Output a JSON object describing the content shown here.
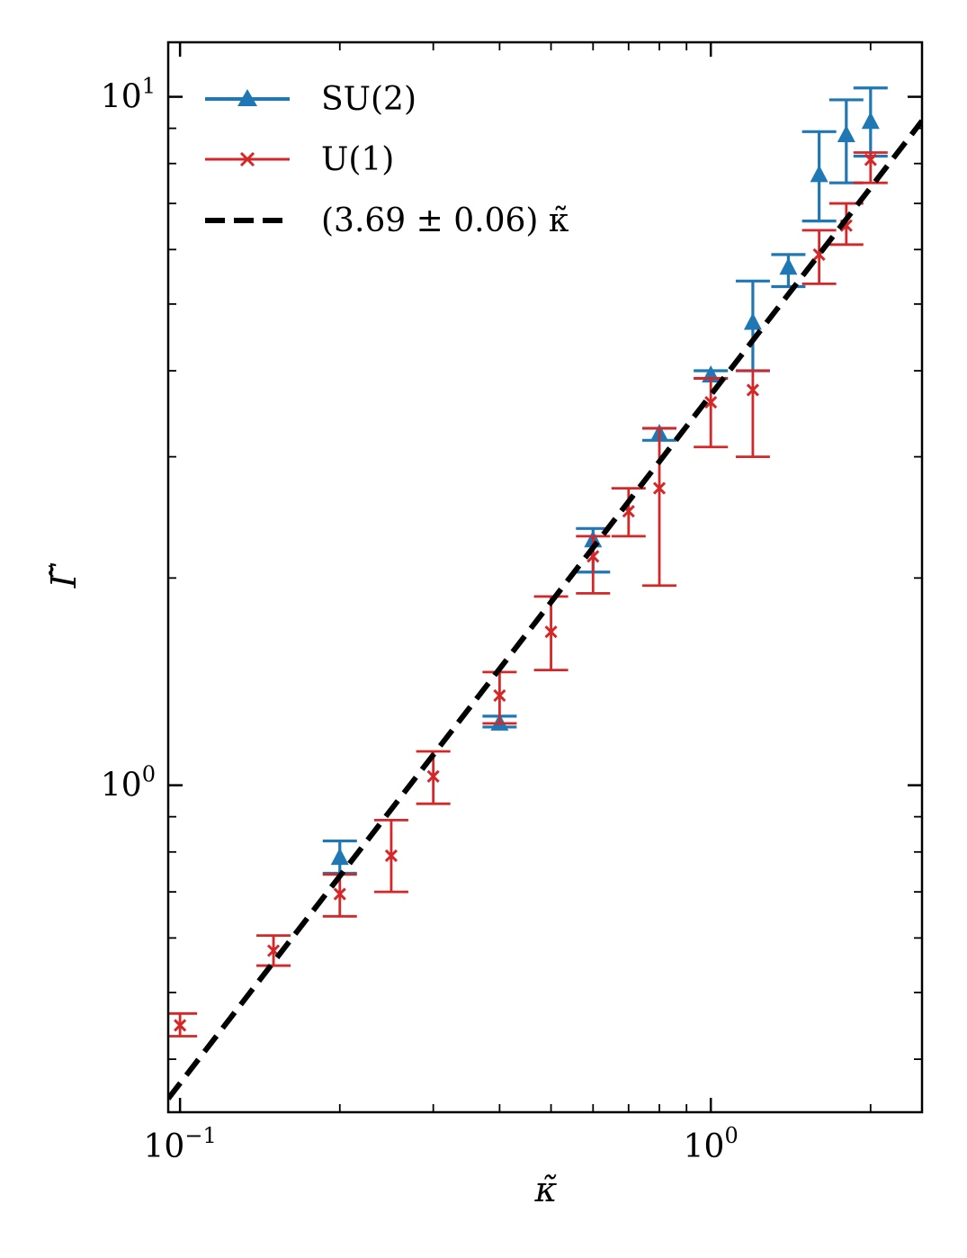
{
  "chart_data": {
    "type": "scatter",
    "xscale": "log",
    "yscale": "log",
    "xlim": [
      0.095,
      2.5
    ],
    "ylim": [
      0.335,
      12.0
    ],
    "xlabel": "κ̃",
    "ylabel": "Γ̃",
    "x_ticks": [
      {
        "value": 0.1,
        "base": "10",
        "exp": "−1"
      },
      {
        "value": 1,
        "base": "10",
        "exp": "0"
      }
    ],
    "y_ticks": [
      {
        "value": 1,
        "base": "10",
        "exp": "0"
      },
      {
        "value": 10,
        "base": "10",
        "exp": "1"
      }
    ],
    "legend_position": "top-left",
    "series": [
      {
        "name": "SU(2)",
        "color": "#1f77b4",
        "marker": "triangle",
        "points": [
          {
            "x": 0.2,
            "y": 0.785,
            "ylo": 0.745,
            "yhi": 0.83
          },
          {
            "x": 0.4,
            "y": 1.23,
            "ylo": 1.215,
            "yhi": 1.26
          },
          {
            "x": 0.6,
            "y": 2.27,
            "ylo": 2.04,
            "yhi": 2.36
          },
          {
            "x": 0.8,
            "y": 3.24,
            "ylo": 3.17,
            "yhi": 3.3
          },
          {
            "x": 1.0,
            "y": 3.94,
            "ylo": 3.9,
            "yhi": 4.0
          },
          {
            "x": 1.2,
            "y": 4.7,
            "ylo": 4.0,
            "yhi": 5.4
          },
          {
            "x": 1.4,
            "y": 5.65,
            "ylo": 5.3,
            "yhi": 5.9
          },
          {
            "x": 1.6,
            "y": 7.7,
            "ylo": 6.6,
            "yhi": 8.9
          },
          {
            "x": 1.8,
            "y": 8.8,
            "ylo": 7.5,
            "yhi": 9.9
          },
          {
            "x": 2.0,
            "y": 9.2,
            "ylo": 8.2,
            "yhi": 10.3
          }
        ]
      },
      {
        "name": "U(1)",
        "color": "#d62728",
        "marker": "x",
        "points": [
          {
            "x": 0.1,
            "y": 0.448,
            "ylo": 0.432,
            "yhi": 0.466
          },
          {
            "x": 0.15,
            "y": 0.575,
            "ylo": 0.547,
            "yhi": 0.605
          },
          {
            "x": 0.2,
            "y": 0.695,
            "ylo": 0.645,
            "yhi": 0.742
          },
          {
            "x": 0.25,
            "y": 0.79,
            "ylo": 0.7,
            "yhi": 0.89
          },
          {
            "x": 0.3,
            "y": 1.03,
            "ylo": 0.94,
            "yhi": 1.12
          },
          {
            "x": 0.4,
            "y": 1.35,
            "ylo": 1.23,
            "yhi": 1.46
          },
          {
            "x": 0.5,
            "y": 1.67,
            "ylo": 1.47,
            "yhi": 1.88
          },
          {
            "x": 0.6,
            "y": 2.15,
            "ylo": 1.9,
            "yhi": 2.3
          },
          {
            "x": 0.7,
            "y": 2.5,
            "ylo": 2.3,
            "yhi": 2.7
          },
          {
            "x": 0.8,
            "y": 2.7,
            "ylo": 1.95,
            "yhi": 3.3
          },
          {
            "x": 1.0,
            "y": 3.6,
            "ylo": 3.1,
            "yhi": 3.9
          },
          {
            "x": 1.2,
            "y": 3.75,
            "ylo": 3.0,
            "yhi": 4.0
          },
          {
            "x": 1.6,
            "y": 5.9,
            "ylo": 5.35,
            "yhi": 6.4
          },
          {
            "x": 1.8,
            "y": 6.5,
            "ylo": 6.1,
            "yhi": 7.0
          },
          {
            "x": 2.0,
            "y": 8.1,
            "ylo": 7.5,
            "yhi": 8.3
          }
        ]
      },
      {
        "name": "(3.69 ± 0.06) κ̃",
        "color": "#000000",
        "style": "dashed",
        "slope": 3.69,
        "x": [
          0.095,
          2.5
        ],
        "y": [
          0.35055,
          9.225
        ]
      }
    ]
  }
}
